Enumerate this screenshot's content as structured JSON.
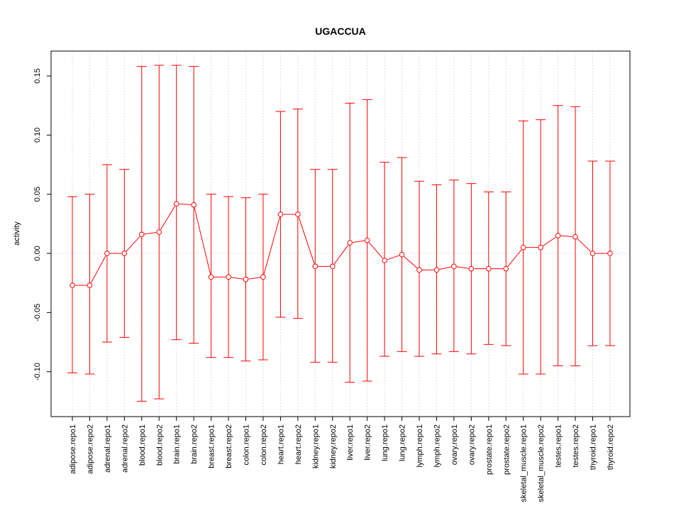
{
  "chart_data": {
    "type": "line",
    "title": "UGACCUA",
    "xlabel": "",
    "ylabel": "activity",
    "ylim": [
      -0.138,
      0.171
    ],
    "yticks": [
      -0.1,
      -0.05,
      0.0,
      0.05,
      0.1,
      0.15
    ],
    "ytick_labels": [
      "-0.10",
      "-0.05",
      "0.00",
      "0.05",
      "0.10",
      "0.15"
    ],
    "grid": "dotted vertical at each category, dotted horizontal at 0",
    "color": "#ff0000",
    "categories": [
      "adipose.repo1",
      "adipose.repo2",
      "adrenal.repo1",
      "adrenal.repo2",
      "blood.repo1",
      "blood.repo2",
      "brain.repo1",
      "brain.repo2",
      "breast.repo1",
      "breast.repo2",
      "colon.repo1",
      "colon.repo2",
      "heart.repo1",
      "heart.repo2",
      "kidney.repo1",
      "kidney.repo2",
      "liver.repo1",
      "liver.repo2",
      "lung.repo1",
      "lung.repo2",
      "lymph.repo1",
      "lymph.repo2",
      "ovary.repo1",
      "ovary.repo2",
      "prostate.repo1",
      "prostate.repo2",
      "skeletal_muscle.repo1",
      "skeletal_muscle.repo2",
      "testes.repo1",
      "testes.repo2",
      "thyroid.repo1",
      "thyroid.repo2"
    ],
    "values": [
      -0.027,
      -0.027,
      0.0,
      0.0,
      0.016,
      0.018,
      0.042,
      0.041,
      -0.02,
      -0.02,
      -0.022,
      -0.02,
      0.033,
      0.033,
      -0.011,
      -0.011,
      0.009,
      0.011,
      -0.006,
      -0.001,
      -0.014,
      -0.014,
      -0.011,
      -0.013,
      -0.013,
      -0.013,
      0.005,
      0.005,
      0.015,
      0.014,
      0.0,
      0.0
    ],
    "upper": [
      0.048,
      0.05,
      0.075,
      0.071,
      0.158,
      0.159,
      0.159,
      0.158,
      0.05,
      0.048,
      0.047,
      0.05,
      0.12,
      0.122,
      0.071,
      0.071,
      0.127,
      0.13,
      0.077,
      0.081,
      0.061,
      0.058,
      0.062,
      0.059,
      0.052,
      0.052,
      0.112,
      0.113,
      0.125,
      0.124,
      0.078,
      0.078
    ],
    "lower": [
      -0.101,
      -0.102,
      -0.075,
      -0.071,
      -0.125,
      -0.123,
      -0.073,
      -0.076,
      -0.088,
      -0.088,
      -0.091,
      -0.09,
      -0.054,
      -0.055,
      -0.092,
      -0.092,
      -0.109,
      -0.108,
      -0.087,
      -0.083,
      -0.087,
      -0.085,
      -0.083,
      -0.085,
      -0.077,
      -0.078,
      -0.102,
      -0.102,
      -0.095,
      -0.095,
      -0.078,
      -0.078
    ]
  }
}
